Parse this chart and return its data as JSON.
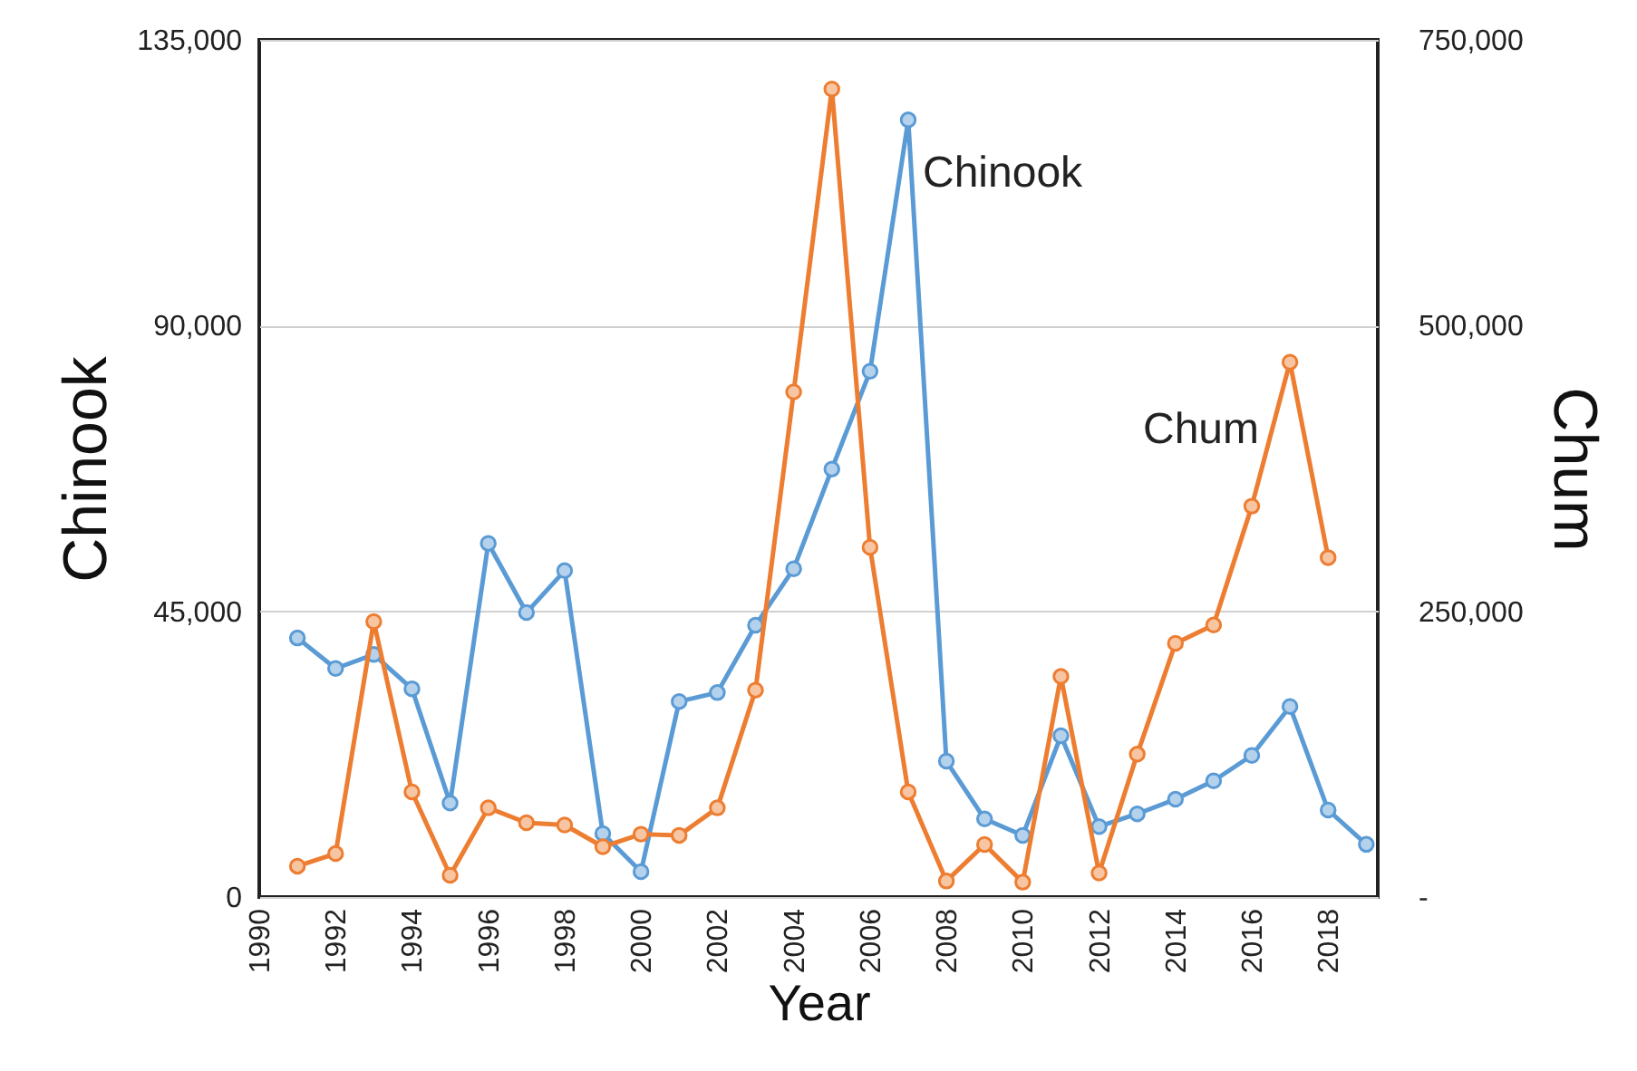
{
  "chart_data": {
    "type": "line",
    "xlabel": "Year",
    "ylabel": "Chinook",
    "y2label": "Chum",
    "x": [
      1991,
      1992,
      1993,
      1994,
      1995,
      1996,
      1997,
      1998,
      1999,
      2000,
      2001,
      2002,
      2003,
      2004,
      2005,
      2006,
      2007,
      2008,
      2009,
      2010,
      2011,
      2012,
      2013,
      2014,
      2015,
      2016,
      2017,
      2018,
      2019
    ],
    "series": [
      {
        "name": "Chinook",
        "color": "#5b9bd5",
        "values": [
          40800,
          36000,
          38200,
          32800,
          14800,
          55700,
          44800,
          51400,
          10000,
          4000,
          30800,
          32200,
          42800,
          51700,
          67400,
          82800,
          122400,
          21400,
          12300,
          9700,
          25400,
          11100,
          13100,
          15400,
          18300,
          22300,
          30000,
          13700,
          8300
        ]
      },
      {
        "name": "Chum",
        "color": "#ed7d31",
        "axis": "y2",
        "x": [
          1991,
          1992,
          1993,
          1994,
          1995,
          1996,
          1997,
          1998,
          1999,
          2000,
          2001,
          2002,
          2003,
          2004,
          2005,
          2006,
          2007,
          2008,
          2009,
          2010,
          2011,
          2012,
          2013,
          2014,
          2015,
          2016,
          2017,
          2018
        ],
        "values": [
          27000,
          38000,
          241000,
          92000,
          19000,
          78000,
          65000,
          63000,
          44000,
          55000,
          54000,
          78000,
          181000,
          442000,
          707000,
          306000,
          92000,
          14000,
          46000,
          13000,
          193000,
          21000,
          125000,
          222000,
          238000,
          342000,
          468000,
          297000
        ]
      }
    ],
    "xlim": [
      1990,
      2019.3
    ],
    "xticks": [
      1990,
      1992,
      1994,
      1996,
      1998,
      2000,
      2002,
      2004,
      2006,
      2008,
      2010,
      2012,
      2014,
      2016,
      2018
    ],
    "ylim": [
      0,
      135000
    ],
    "yticks": [
      0,
      {
        "value": 45000,
        "label": "45,000"
      },
      {
        "value": 90000,
        "label": "90,000"
      },
      {
        "value": 135000,
        "label": "135,000"
      }
    ],
    "y2lim": [
      0,
      750000
    ],
    "y2ticks": [
      {
        "value": 0,
        "label": "-"
      },
      {
        "value": 250000,
        "label": "250,000"
      },
      {
        "value": 500000,
        "label": "500,000"
      },
      {
        "value": 750000,
        "label": "750,000"
      }
    ],
    "grid": "y",
    "marker": "circle",
    "line_style": "solid"
  }
}
